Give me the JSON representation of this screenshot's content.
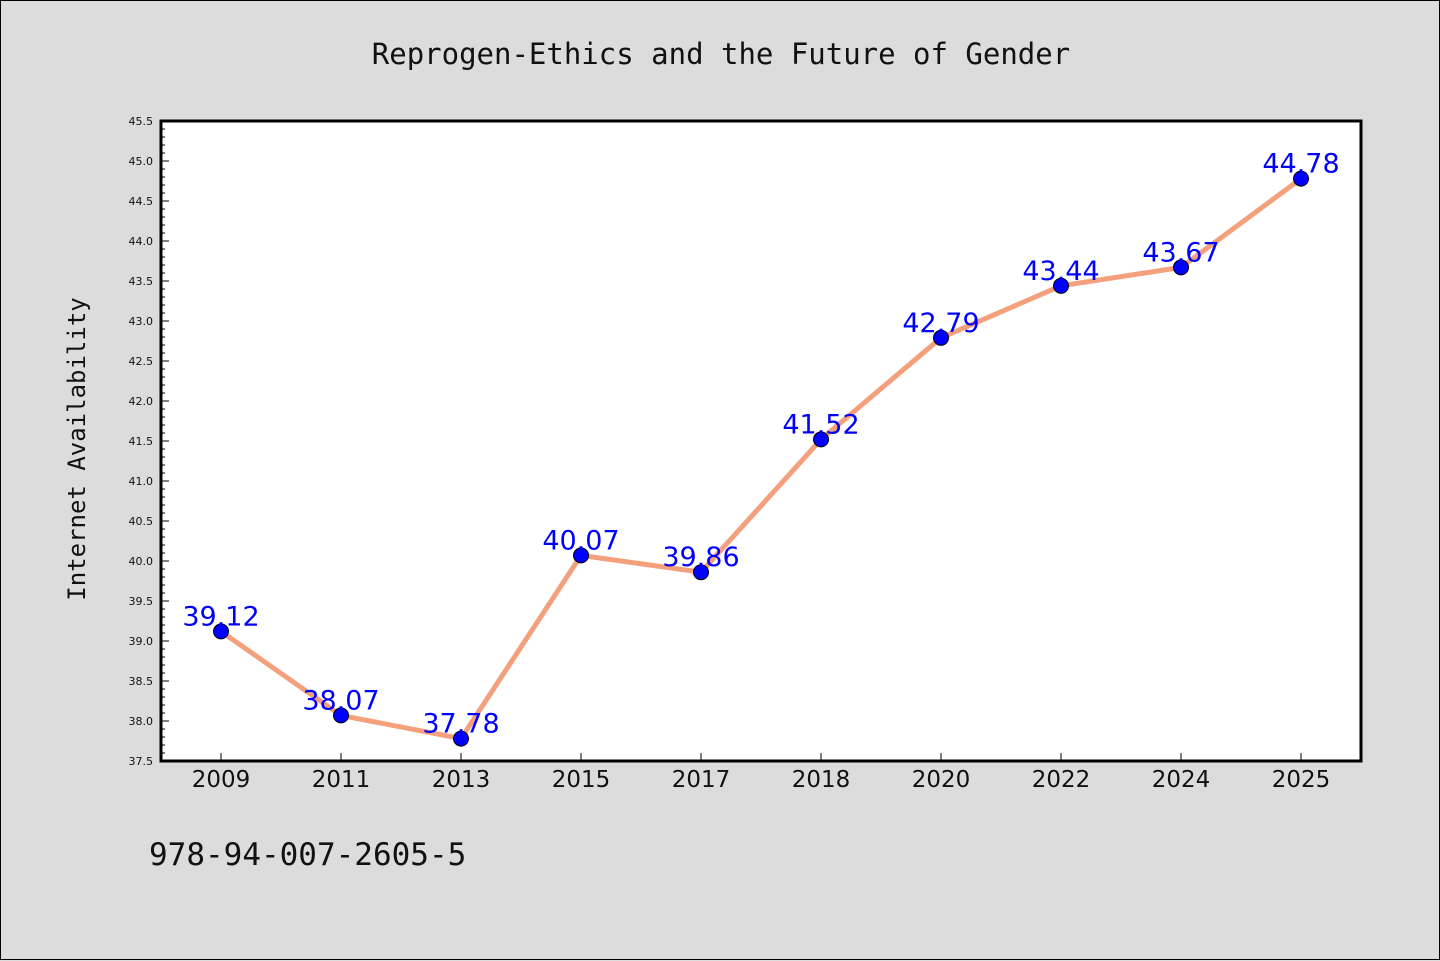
{
  "chart_data": {
    "type": "line",
    "title": "Reprogen-Ethics and the Future of Gender",
    "xlabel": "",
    "ylabel": "Internet Availability",
    "categories": [
      "2009",
      "2011",
      "2013",
      "2015",
      "2017",
      "2018",
      "2020",
      "2022",
      "2024",
      "2025"
    ],
    "series": [
      {
        "values": [
          39.12,
          38.07,
          37.78,
          40.07,
          39.86,
          41.52,
          42.79,
          43.44,
          43.67,
          44.78
        ],
        "labels": [
          "39.12",
          "38.07",
          "37.78",
          "40.07",
          "39.86",
          "41.52",
          "42.79",
          "43.44",
          "43.67",
          "44.78"
        ]
      }
    ],
    "ylim": [
      37.5,
      45.5
    ],
    "yticks": [
      "37.5",
      "38.0",
      "38.5",
      "39.0",
      "39.5",
      "40.0",
      "40.5",
      "41.0",
      "41.5",
      "42.0",
      "42.5",
      "43.0",
      "43.5",
      "44.0",
      "44.5",
      "45.0",
      "45.5"
    ],
    "grid": false,
    "line_color": "#f4a07c",
    "marker_color": "#0000ff",
    "label_color": "#0000ff",
    "plot_background": "#ffffff",
    "page_background": "#dcdcdc"
  },
  "footer": {
    "isbn": "978-94-007-2605-5"
  }
}
